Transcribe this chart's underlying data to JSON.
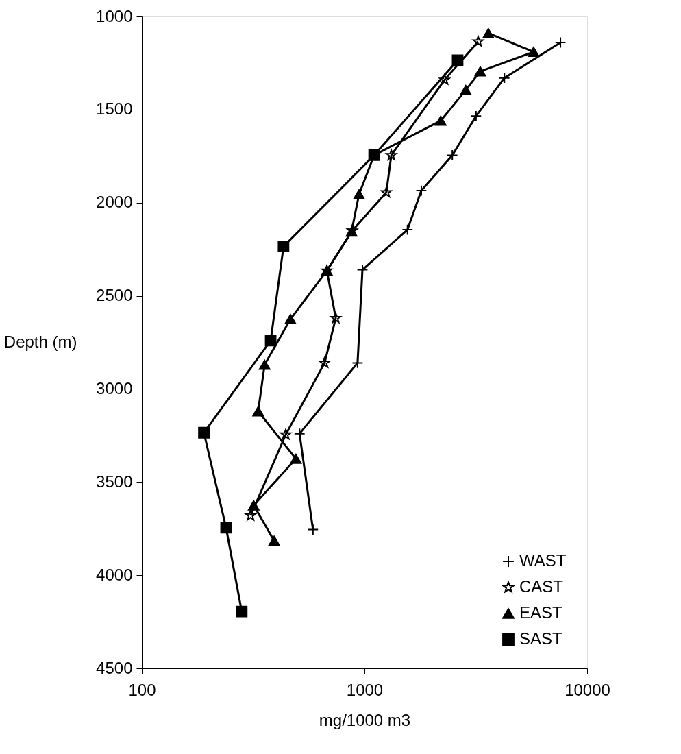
{
  "chart_data": {
    "type": "line",
    "xlabel": "mg/1000 m3",
    "ylabel": "Depth (m)",
    "xlim": [
      100,
      10000
    ],
    "xticks": [
      100,
      1000,
      10000
    ],
    "ylim": [
      4500,
      1000
    ],
    "yticks": [
      1000,
      1500,
      2000,
      2500,
      3000,
      3500,
      4000,
      4500
    ],
    "log": "x",
    "grid": false,
    "legend": "bottom right",
    "line_style": "solid",
    "series": [
      {
        "name": "WAST",
        "color": "#000000",
        "marker": "cross",
        "x": [
          7590,
          4250,
          3170,
          2480,
          1800,
          1560,
          979,
          931,
          511,
          587
        ],
        "values": [
          1140,
          1330,
          1535,
          1745,
          1935,
          2145,
          2360,
          2860,
          3240,
          3755
        ]
      },
      {
        "name": "CAST",
        "color": "#000000",
        "marker": "star",
        "x": [
          3240,
          2290,
          1320,
          1253,
          881,
          678,
          743,
          662,
          443,
          308
        ],
        "values": [
          1135,
          1340,
          1745,
          1945,
          2150,
          2365,
          2620,
          2860,
          3245,
          3680
        ]
      },
      {
        "name": "EAST",
        "color": "#000000",
        "marker": "triangle",
        "x": [
          3600,
          5750,
          3310,
          2850,
          2200,
          1105,
          945,
          875,
          678,
          465,
          356,
          333,
          492,
          318,
          393
        ],
        "values": [
          1090,
          1190,
          1295,
          1395,
          1560,
          1745,
          1955,
          2155,
          2365,
          2625,
          2870,
          3120,
          3375,
          3625,
          3815
        ]
      },
      {
        "name": "SAST",
        "color": "#000000",
        "marker": "square",
        "x": [
          2620,
          1105,
          433,
          379,
          190,
          239,
          281
        ],
        "values": [
          1235,
          1745,
          2235,
          2740,
          3235,
          3745,
          4195
        ]
      }
    ]
  }
}
